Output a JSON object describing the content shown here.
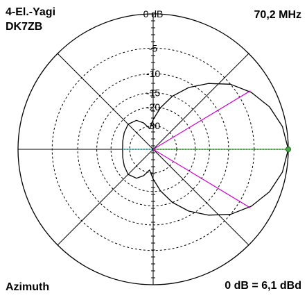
{
  "labels": {
    "title_line1": "4-El.-Yagi",
    "title_line2": "DK7ZB",
    "frequency": "70,2 MHz",
    "mode": "Azimuth",
    "reference": "0 dB = 6,1 dBd"
  },
  "chart_data": {
    "type": "polar",
    "title": "4-El.-Yagi DK7ZB",
    "frequency": "70,2 MHz",
    "plane": "Azimuth",
    "reference": "0 dB = 6,1 dBd",
    "radial_ticks_db": [
      0,
      -5,
      -10,
      -15,
      -20,
      -30
    ],
    "radial_tick_labels": [
      "0 dB",
      "-5",
      "-10",
      "-15",
      "-20",
      "-30"
    ],
    "series": [
      {
        "color": "#000000",
        "pattern_db": [
          {
            "angle_deg": 0,
            "db": 0
          },
          {
            "angle_deg": 10,
            "db": -0.5
          },
          {
            "angle_deg": 20,
            "db": -1.5
          },
          {
            "angle_deg": 30,
            "db": -3.0
          },
          {
            "angle_deg": 40,
            "db": -5.0
          },
          {
            "angle_deg": 50,
            "db": -7.8
          },
          {
            "angle_deg": 60,
            "db": -11.0
          },
          {
            "angle_deg": 70,
            "db": -15.0
          },
          {
            "angle_deg": 80,
            "db": -20.0
          },
          {
            "angle_deg": 90,
            "db": -26.0
          },
          {
            "angle_deg": 100,
            "db": -32.0
          },
          {
            "angle_deg": 110,
            "db": -27.0
          },
          {
            "angle_deg": 120,
            "db": -24.0
          },
          {
            "angle_deg": 135,
            "db": -23.0
          },
          {
            "angle_deg": 150,
            "db": -24.0
          },
          {
            "angle_deg": 165,
            "db": -25.0
          },
          {
            "angle_deg": 180,
            "db": -25.5
          }
        ]
      }
    ],
    "half_power_angle_deg": 31,
    "marker_colors": {
      "beamwidth_lines": "#d000d0",
      "axis_lines": "#00cc00",
      "rear_axis": "#00cccc",
      "max_point": "#44aa44"
    }
  }
}
